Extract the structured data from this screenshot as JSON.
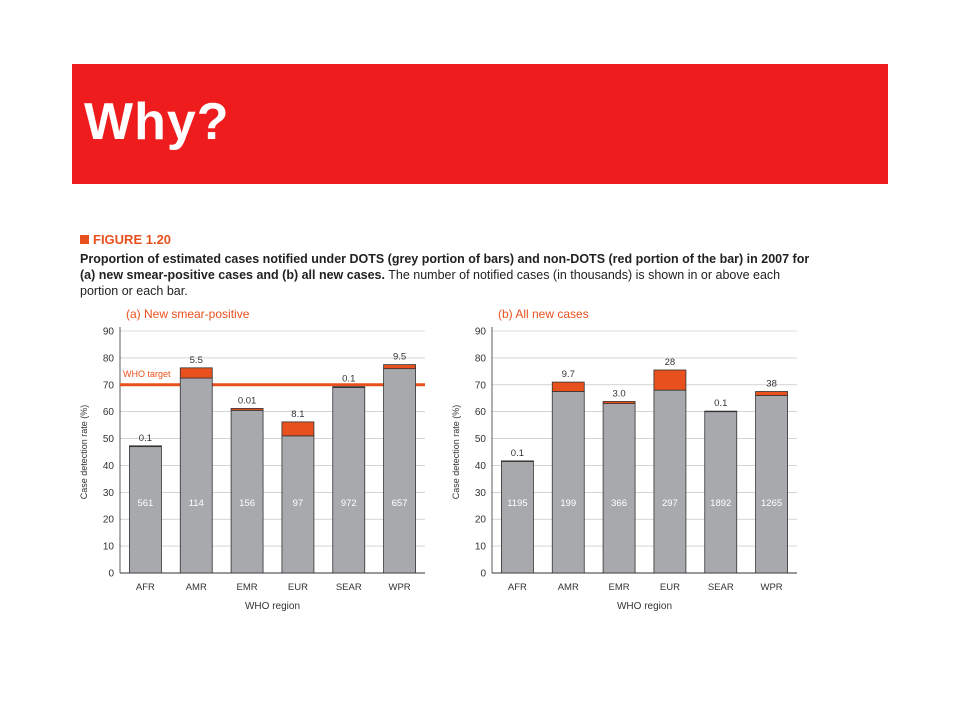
{
  "slide": {
    "title": "Why?"
  },
  "figure": {
    "label": "FIGURE 1.20",
    "caption_bold": "Proportion of estimated cases notified under DOTS (grey portion of bars) and non-DOTS (red portion of the bar) in 2007 for (a) new smear-positive cases and (b) all new cases.",
    "caption_normal": " The number of notified cases (in thousands) is shown in or above each portion or each bar."
  },
  "colors": {
    "dots_grey": "#a7a9ac",
    "non_dots_red": "#e8501d",
    "title_red": "#ee1c1c",
    "accent_orange": "#e8501d"
  },
  "chart_data": [
    {
      "type": "bar",
      "stacked": true,
      "title": "(a) New smear-positive",
      "xlabel": "WHO region",
      "ylabel": "Case detection rate (%)",
      "ylim": [
        0,
        90
      ],
      "yticks": [
        0,
        10,
        20,
        30,
        40,
        50,
        60,
        70,
        80,
        90
      ],
      "grid": true,
      "categories": [
        "AFR",
        "AMR",
        "EMR",
        "EUR",
        "SEAR",
        "WPR"
      ],
      "series": [
        {
          "name": "DOTS",
          "values": [
            47,
            72.5,
            60.5,
            51,
            69,
            76
          ]
        },
        {
          "name": "non-DOTS",
          "values": [
            0.3,
            3.8,
            0.7,
            5.2,
            0.3,
            1.5
          ]
        }
      ],
      "inside_labels": [
        "561",
        "114",
        "156",
        "97",
        "972",
        "657"
      ],
      "top_labels": [
        "0.1",
        "5.5",
        "0.01",
        "8.1",
        "0.1",
        "9.5"
      ],
      "reference_line": {
        "value": 70,
        "label": "WHO target"
      }
    },
    {
      "type": "bar",
      "stacked": true,
      "title": "(b) All new cases",
      "xlabel": "WHO region",
      "ylabel": "Case detection rate (%)",
      "ylim": [
        0,
        90
      ],
      "yticks": [
        0,
        10,
        20,
        30,
        40,
        50,
        60,
        70,
        80,
        90
      ],
      "grid": true,
      "categories": [
        "AFR",
        "AMR",
        "EMR",
        "EUR",
        "SEAR",
        "WPR"
      ],
      "series": [
        {
          "name": "DOTS",
          "values": [
            41.5,
            67.5,
            63,
            68,
            60,
            66
          ]
        },
        {
          "name": "non-DOTS",
          "values": [
            0.2,
            3.5,
            0.8,
            7.5,
            0.2,
            1.5
          ]
        }
      ],
      "inside_labels": [
        "1195",
        "199",
        "366",
        "297",
        "1892",
        "1265"
      ],
      "top_labels": [
        "0.1",
        "9.7",
        "3.0",
        "28",
        "0.1",
        "38"
      ]
    }
  ]
}
